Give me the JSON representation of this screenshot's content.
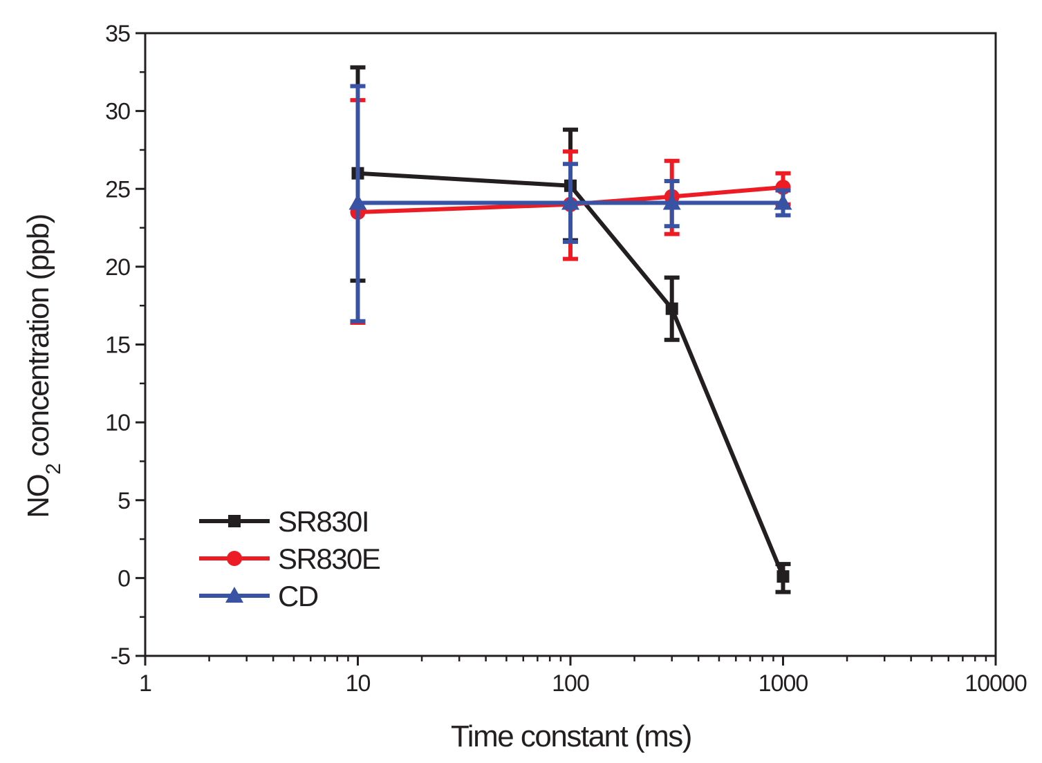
{
  "chart_data": {
    "type": "line",
    "title": "",
    "xlabel": "Time constant (ms)",
    "ylabel": "NO",
    "ylabel_subscript": "2",
    "ylabel_suffix": " concentration (ppb)",
    "xscale": "log",
    "xlim": [
      1,
      10000
    ],
    "ylim": [
      -5,
      35
    ],
    "x_ticks": [
      1,
      10,
      100,
      1000,
      10000
    ],
    "x_tick_labels": [
      "1",
      "10",
      "100",
      "1000",
      "10000"
    ],
    "y_ticks": [
      -5,
      0,
      5,
      10,
      15,
      20,
      25,
      30,
      35
    ],
    "y_tick_labels": [
      "-5",
      "0",
      "5",
      "10",
      "15",
      "20",
      "25",
      "30",
      "35"
    ],
    "legend_position": "bottom-left",
    "series": [
      {
        "name": "SR830I",
        "color": "#231f20",
        "marker": "square",
        "x": [
          10,
          100,
          300,
          1000
        ],
        "values": [
          26.0,
          25.2,
          17.3,
          0.1
        ],
        "err_low": [
          19.1,
          21.7,
          15.3,
          -0.9
        ],
        "err_high": [
          32.8,
          28.8,
          19.3,
          0.9
        ]
      },
      {
        "name": "SR830E",
        "color": "#ed1c24",
        "marker": "circle",
        "x": [
          10,
          100,
          300,
          1000
        ],
        "values": [
          23.5,
          24.0,
          24.5,
          25.1
        ],
        "err_low": [
          16.4,
          20.5,
          22.1,
          24.0
        ],
        "err_high": [
          30.7,
          27.4,
          26.8,
          26.0
        ]
      },
      {
        "name": "CD",
        "color": "#3953a4",
        "marker": "triangle",
        "x": [
          10,
          100,
          300,
          1000
        ],
        "values": [
          24.1,
          24.1,
          24.1,
          24.1
        ],
        "err_low": [
          16.5,
          21.6,
          22.6,
          23.3
        ],
        "err_high": [
          31.6,
          26.6,
          25.5,
          24.9
        ]
      }
    ]
  }
}
